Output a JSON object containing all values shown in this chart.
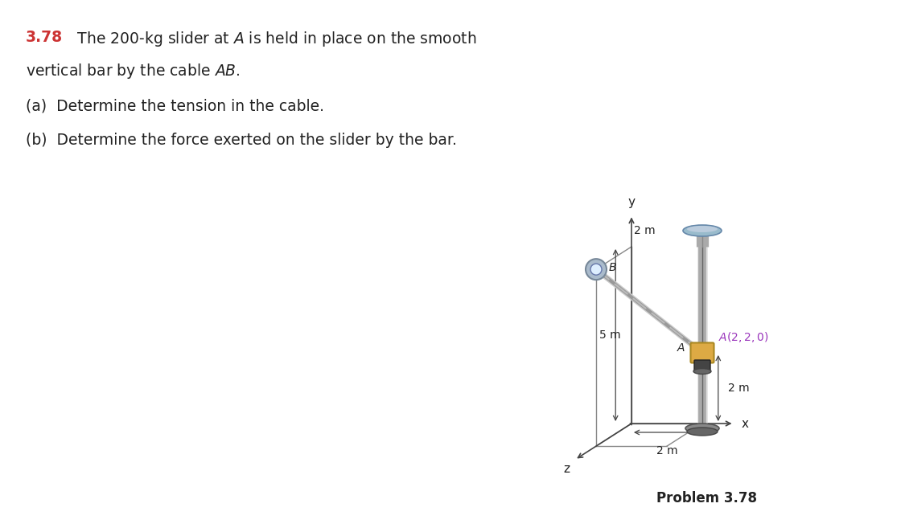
{
  "bg_color": "#ffffff",
  "title_num": "3.78",
  "title_num_color": "#cc3333",
  "title_text": "  The 200-kg slider at $A$ is held in place on the smooth",
  "line2": "vertical bar by the cable $AB$.",
  "line3": "(a)  Determine the tension in the cable.",
  "line4": "(b)  Determine the force exerted on the slider by the bar.",
  "problem_label": "Problem 3.78",
  "annotation_A": "$A(2,2,0)$",
  "annotation_A_color": "#9933bb",
  "label_5m": "5 m",
  "label_2m_right": "2 m",
  "label_2m_bottom": "2 m",
  "label_2m_top": "2 m",
  "text_color": "#222222",
  "font_size_title": 13.5,
  "font_size_labels": 10.5,
  "font_size_problem": 12
}
